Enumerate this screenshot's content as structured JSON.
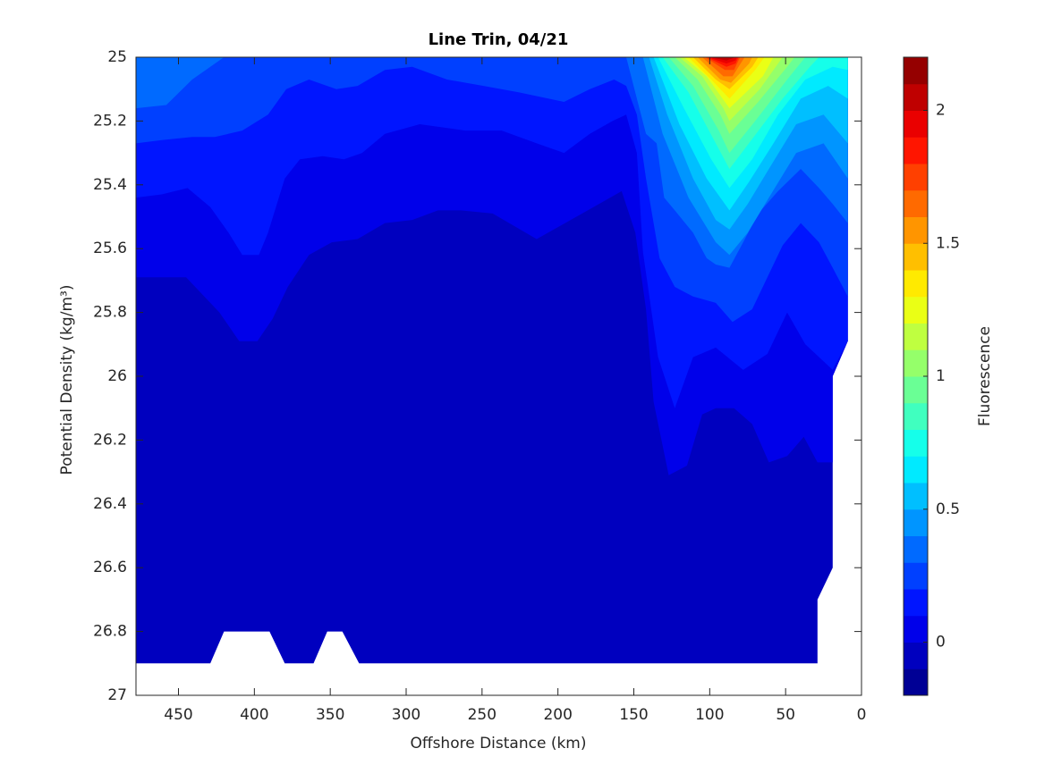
{
  "chart_data": {
    "type": "contour",
    "title": "Line Trin, 04/21",
    "xlabel": "Offshore Distance (km)",
    "ylabel": "Potential Density (kg/m³)",
    "xlim": [
      0,
      478
    ],
    "xreverse": true,
    "xticks": [
      0,
      50,
      100,
      150,
      200,
      250,
      300,
      350,
      400,
      450
    ],
    "ylim": [
      25,
      27
    ],
    "yreverse": true,
    "yticks": [
      25,
      25.2,
      25.4,
      25.6,
      25.8,
      26,
      26.2,
      26.4,
      26.6,
      26.8,
      27
    ],
    "colormap": "jet",
    "colorbar": {
      "label": "Fluorescence",
      "lim": [
        -0.2,
        2.2
      ],
      "ticks": [
        0,
        0.5,
        1,
        1.5,
        2
      ],
      "levels": [
        -0.2,
        -0.1,
        0,
        0.1,
        0.2,
        0.3,
        0.4,
        0.5,
        0.6,
        0.7,
        0.8,
        0.9,
        1,
        1.1,
        1.2,
        1.3,
        1.4,
        1.5,
        1.6,
        1.7,
        1.8,
        1.9,
        2,
        2.1,
        2.2
      ]
    },
    "contours": [
      {
        "level": -0.1,
        "x": [
          478,
          9,
          9,
          19,
          19,
          29,
          29,
          331,
          342,
          352,
          361,
          380,
          390,
          420,
          429,
          478
        ],
        "y": [
          25,
          25,
          25.89,
          26,
          26.6,
          26.7,
          26.9,
          26.9,
          26.8,
          26.8,
          26.9,
          26.9,
          26.8,
          26.8,
          26.9,
          26.9
        ]
      },
      {
        "level": 0,
        "x": [
          478,
          478,
          445,
          423,
          410,
          398,
          388,
          378,
          364,
          349,
          332,
          314,
          296,
          279,
          264,
          243,
          214,
          184,
          158,
          149,
          142,
          137,
          127,
          115,
          105,
          96,
          84,
          72,
          61,
          49,
          38,
          29,
          19,
          19,
          9,
          9
        ],
        "y": [
          25,
          25.69,
          25.69,
          25.8,
          25.89,
          25.89,
          25.82,
          25.72,
          25.62,
          25.58,
          25.57,
          25.52,
          25.51,
          25.48,
          25.48,
          25.49,
          25.57,
          25.49,
          25.42,
          25.55,
          25.79,
          26.08,
          26.31,
          26.28,
          26.12,
          26.1,
          26.1,
          26.15,
          26.27,
          26.25,
          26.19,
          26.27,
          26.27,
          26,
          25.89,
          25
        ]
      },
      {
        "level": 0.1,
        "x": [
          478,
          478,
          461,
          444,
          429,
          417,
          408,
          397,
          391,
          380,
          370,
          355,
          341,
          329,
          314,
          291,
          261,
          237,
          214,
          196,
          179,
          164,
          155,
          148,
          144,
          134,
          123,
          111,
          96,
          78,
          62,
          49,
          37,
          19,
          9,
          9
        ],
        "y": [
          25,
          25.44,
          25.43,
          25.41,
          25.47,
          25.55,
          25.62,
          25.62,
          25.55,
          25.38,
          25.32,
          25.31,
          25.32,
          25.3,
          25.24,
          25.21,
          25.23,
          25.23,
          25.27,
          25.3,
          25.24,
          25.2,
          25.18,
          25.3,
          25.61,
          25.94,
          26.1,
          25.94,
          25.91,
          25.98,
          25.93,
          25.8,
          25.9,
          25.98,
          25.89,
          25
        ]
      },
      {
        "level": 0.2,
        "x": [
          478,
          478,
          461,
          441,
          426,
          408,
          391,
          379,
          364,
          346,
          332,
          314,
          296,
          273,
          249,
          226,
          196,
          179,
          163,
          155,
          148,
          142,
          133,
          123,
          111,
          96,
          85,
          72,
          62,
          52,
          40,
          28,
          19,
          9,
          9
        ],
        "y": [
          25,
          25.27,
          25.26,
          25.25,
          25.25,
          25.23,
          25.18,
          25.1,
          25.07,
          25.1,
          25.09,
          25.04,
          25.03,
          25.07,
          25.09,
          25.11,
          25.14,
          25.1,
          25.07,
          25.09,
          25.18,
          25.38,
          25.63,
          25.72,
          25.75,
          25.77,
          25.83,
          25.79,
          25.69,
          25.59,
          25.52,
          25.58,
          25.66,
          25.75,
          25
        ]
      },
      {
        "level": 0.3,
        "x": [
          478,
          478,
          458,
          441,
          420
        ],
        "y": [
          25,
          25.16,
          25.15,
          25.07,
          25
        ]
      },
      {
        "level": 0.3,
        "x": [
          155,
          148,
          142,
          135,
          130,
          123,
          111,
          102,
          96,
          87,
          78,
          68,
          55,
          40,
          28,
          19,
          9,
          9
        ],
        "y": [
          25,
          25.13,
          25.24,
          25.27,
          25.44,
          25.48,
          25.55,
          25.63,
          25.65,
          25.66,
          25.58,
          25.49,
          25.42,
          25.35,
          25.41,
          25.46,
          25.52,
          25
        ]
      },
      {
        "level": 0.4,
        "x": [
          144,
          131,
          114,
          96,
          87,
          75,
          61,
          43,
          25,
          9,
          9
        ],
        "y": [
          25,
          25.24,
          25.44,
          25.58,
          25.62,
          25.55,
          25.44,
          25.3,
          25.27,
          25.38,
          25
        ]
      },
      {
        "level": 0.5,
        "x": [
          140,
          128,
          111,
          96,
          87,
          75,
          61,
          43,
          25,
          9,
          9
        ],
        "y": [
          25,
          25.18,
          25.38,
          25.51,
          25.54,
          25.46,
          25.35,
          25.21,
          25.18,
          25.27,
          25
        ]
      },
      {
        "level": 0.6,
        "x": [
          137,
          120,
          102,
          87,
          74,
          58,
          40,
          22,
          9,
          9
        ],
        "y": [
          25,
          25.21,
          25.38,
          25.48,
          25.39,
          25.27,
          25.13,
          25.09,
          25.13,
          25
        ]
      },
      {
        "level": 0.7,
        "x": [
          134,
          117,
          99,
          87,
          72,
          55,
          37,
          19,
          9,
          9
        ],
        "y": [
          25,
          25.16,
          25.32,
          25.41,
          25.32,
          25.18,
          25.07,
          25.03,
          25.04,
          25
        ]
      },
      {
        "level": 0.8,
        "x": [
          131,
          114,
          96,
          87,
          71,
          52,
          34,
          28
        ],
        "y": [
          25,
          25.11,
          25.27,
          25.35,
          25.25,
          25.13,
          25.03,
          25
        ]
      },
      {
        "level": 0.9,
        "x": [
          127,
          111,
          94,
          87,
          70,
          49,
          37
        ],
        "y": [
          25,
          25.09,
          25.23,
          25.3,
          25.2,
          25.07,
          25
        ]
      },
      {
        "level": 1,
        "x": [
          123,
          108,
          93,
          87,
          68,
          49,
          44
        ],
        "y": [
          25,
          25.07,
          25.18,
          25.24,
          25.14,
          25.03,
          25
        ]
      },
      {
        "level": 1.1,
        "x": [
          120,
          105,
          91,
          87,
          67,
          52
        ],
        "y": [
          25,
          25.06,
          25.16,
          25.2,
          25.1,
          25
        ]
      },
      {
        "level": 1.2,
        "x": [
          117,
          102,
          87,
          65,
          58
        ],
        "y": [
          25,
          25.06,
          25.16,
          25.06,
          25
        ]
      },
      {
        "level": 1.3,
        "x": [
          114,
          99,
          87,
          70,
          64
        ],
        "y": [
          25,
          25.07,
          25.13,
          25.04,
          25
        ]
      },
      {
        "level": 1.4,
        "x": [
          111,
          96,
          87,
          72,
          68
        ],
        "y": [
          25,
          25.07,
          25.1,
          25.03,
          25
        ]
      },
      {
        "level": 1.5,
        "x": [
          108,
          93,
          86,
          74,
          72
        ],
        "y": [
          25,
          25.07,
          25.08,
          25.02,
          25
        ]
      },
      {
        "level": 1.6,
        "x": [
          105,
          91,
          85,
          77
        ],
        "y": [
          25,
          25.06,
          25.06,
          25
        ]
      },
      {
        "level": 1.7,
        "x": [
          103,
          90,
          84,
          80
        ],
        "y": [
          25,
          25.04,
          25.04,
          25
        ]
      },
      {
        "level": 1.8,
        "x": [
          102,
          89,
          83,
          81
        ],
        "y": [
          25,
          25.03,
          25.02,
          25
        ]
      },
      {
        "level": 1.9,
        "x": [
          101,
          89,
          83,
          82
        ],
        "y": [
          25,
          25.02,
          25.01,
          25
        ]
      },
      {
        "level": 2,
        "x": [
          100,
          89,
          83
        ],
        "y": [
          25,
          25.01,
          25
        ]
      }
    ]
  }
}
